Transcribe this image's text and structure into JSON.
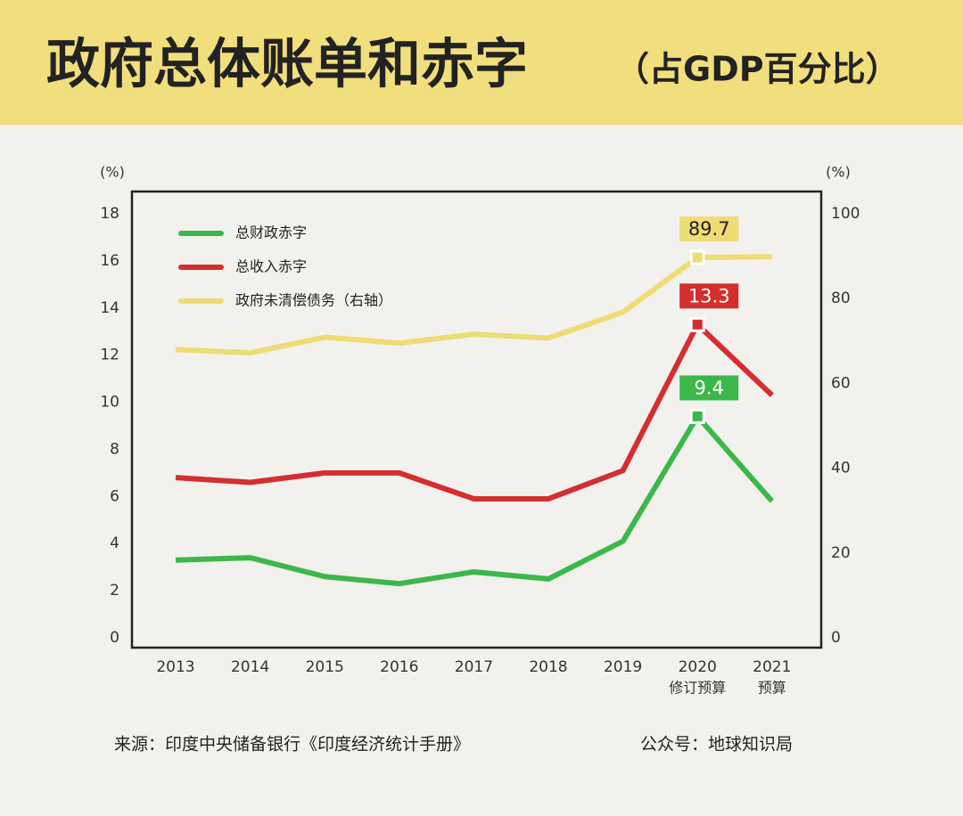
{
  "chart_data": {
    "type": "line",
    "title": "政府总体账单和赤字",
    "subtitle": "（占GDP百分比）",
    "y_unit": "(%)",
    "y2_unit": "(%)",
    "categories": [
      "2013",
      "2014",
      "2015",
      "2016",
      "2017",
      "2018",
      "2019",
      "2020",
      "2021"
    ],
    "category_notes": [
      null,
      null,
      null,
      null,
      null,
      null,
      null,
      "修订预算",
      "预算"
    ],
    "series": [
      {
        "name": "总财政赤字",
        "color": "#3cb84a",
        "values": [
          3.3,
          3.4,
          2.6,
          2.3,
          2.8,
          2.5,
          4.1,
          9.4,
          5.8
        ],
        "value_labels": [
          null,
          null,
          null,
          null,
          null,
          null,
          null,
          "9.4",
          null
        ]
      },
      {
        "name": "总收入赤字",
        "color": "#d42e2e",
        "values": [
          6.8,
          6.6,
          7.0,
          7.0,
          5.9,
          5.9,
          7.1,
          13.3,
          10.3
        ],
        "value_labels": [
          null,
          null,
          null,
          null,
          null,
          null,
          null,
          "13.3",
          null
        ]
      },
      {
        "name": "政府未清偿债务（右轴）",
        "color": "#f0dc74",
        "axis": "y2",
        "values": [
          68.0,
          67.2,
          70.9,
          69.5,
          71.6,
          70.7,
          76.8,
          89.7,
          89.9
        ],
        "value_labels": [
          null,
          null,
          null,
          null,
          null,
          null,
          null,
          "89.7",
          null
        ]
      }
    ],
    "ylim": [
      0,
      18
    ],
    "yticks": [
      0,
      2,
      4,
      6,
      8,
      10,
      12,
      14,
      16,
      18
    ],
    "y2lim": [
      0,
      100
    ],
    "y2ticks": [
      0,
      20,
      40,
      60,
      80,
      100
    ],
    "legend": "upper-left",
    "source": "来源：印度中央储备银行《印度经济统计手册》",
    "credit": "公众号：地球知识局"
  }
}
